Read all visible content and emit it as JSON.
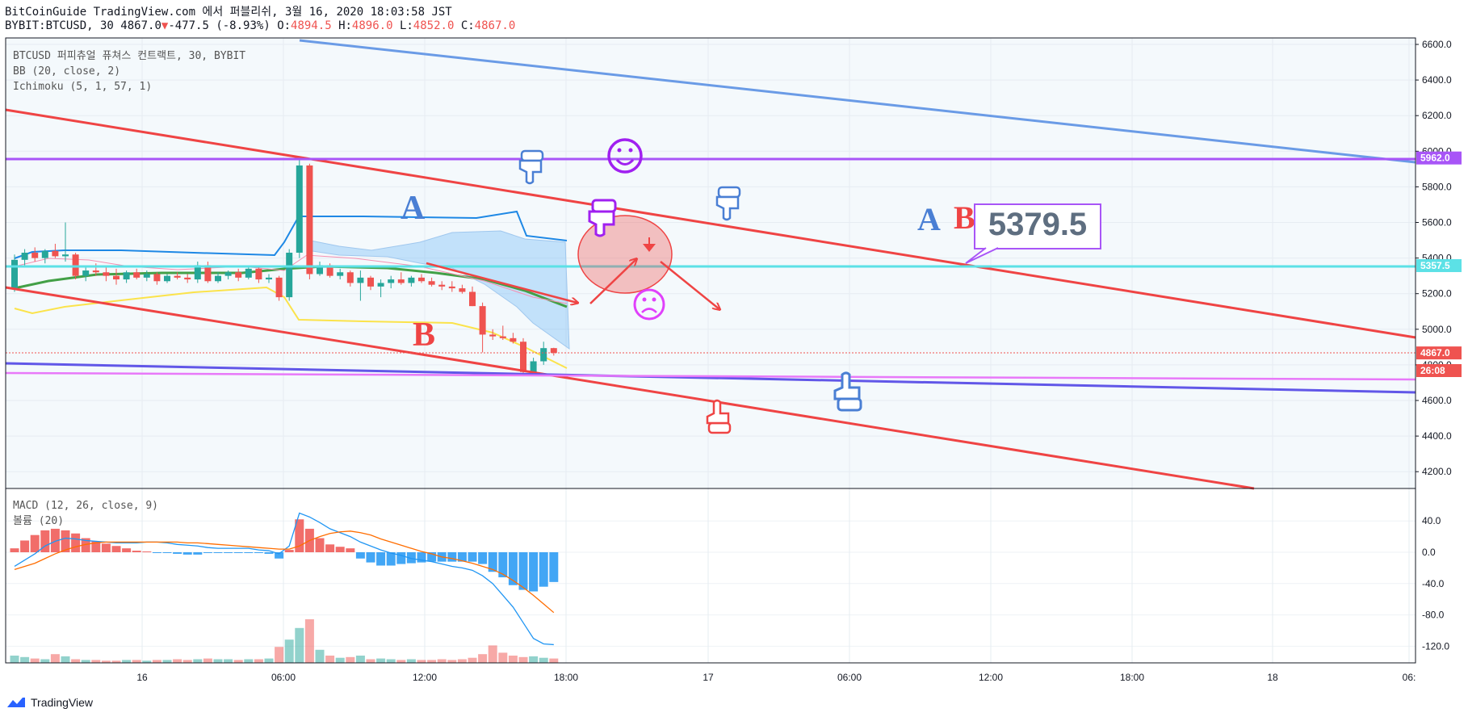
{
  "header": {
    "line1": "BitCoinGuide TradingView.com 에서 퍼블리쉬, 3월 16, 2020 18:03:58 JST",
    "symbol": "BYBIT:BTCUSD, 30",
    "last": "4867.0",
    "change": "-477.5 (-8.93%)",
    "o_label": "O:",
    "o_val": "4894.5",
    "h_label": "H:",
    "h_val": "4896.0",
    "l_label": "L:",
    "l_val": "4852.0",
    "c_label": "C:",
    "c_val": "4867.0"
  },
  "legend": {
    "main": "BTCUSD 퍼피츄얼 퓨쳐스 컨트랙트, 30, BYBIT",
    "bb": "BB (20, close, 2)",
    "ichimoku": "Ichimoku (5, 1, 57, 1)",
    "macd": "MACD (12, 26, close, 9)",
    "volume": "볼륨 (20)"
  },
  "footer": {
    "brand": "TradingView"
  },
  "colors": {
    "up": "#26a69a",
    "down": "#ef5350",
    "channel": "#ef4444",
    "blue_line": "#6a9be6",
    "purple_line": "#a855f7",
    "cyan_line": "#5ce1e6",
    "macd": "#2196f3",
    "signal": "#ff6d00"
  },
  "chart_data": [
    {
      "type": "candlestick",
      "title": "BTCUSD 퍼피츄얼 퓨쳐스 컨트랙트, 30, BYBIT",
      "ylim": [
        4100,
        6650
      ],
      "y_ticks": [
        "6600.0",
        "6400.0",
        "6200.0",
        "6000.0",
        "5800.0",
        "5600.0",
        "5400.0",
        "5200.0",
        "5000.0",
        "4800.0",
        "4600.0",
        "4400.0",
        "4200.0"
      ],
      "x_ticks": [
        "16",
        "06:00",
        "12:00",
        "18:00",
        "17",
        "06:00",
        "12:00",
        "18:00",
        "18",
        "06:"
      ],
      "price_labels": [
        {
          "text": "5962.0",
          "value": 5962,
          "color": "#a855f7"
        },
        {
          "text": "5357.5",
          "value": 5357.5,
          "color": "#5ce1e6"
        },
        {
          "text": "4867.0",
          "value": 4867,
          "color": "#ef5350"
        },
        {
          "text": "26:08",
          "value": 4770,
          "color": "#ef5350"
        }
      ],
      "ohlc": [
        [
          5230,
          5420,
          5210,
          5390
        ],
        [
          5390,
          5450,
          5350,
          5430
        ],
        [
          5430,
          5460,
          5380,
          5400
        ],
        [
          5400,
          5450,
          5370,
          5440
        ],
        [
          5440,
          5480,
          5400,
          5410
        ],
        [
          5410,
          5600,
          5380,
          5420
        ],
        [
          5420,
          5430,
          5280,
          5300
        ],
        [
          5300,
          5350,
          5270,
          5330
        ],
        [
          5330,
          5370,
          5300,
          5320
        ],
        [
          5320,
          5350,
          5270,
          5300
        ],
        [
          5300,
          5340,
          5250,
          5280
        ],
        [
          5280,
          5330,
          5260,
          5320
        ],
        [
          5320,
          5340,
          5280,
          5290
        ],
        [
          5290,
          5330,
          5270,
          5310
        ],
        [
          5310,
          5320,
          5250,
          5270
        ],
        [
          5270,
          5310,
          5260,
          5300
        ],
        [
          5300,
          5320,
          5280,
          5290
        ],
        [
          5290,
          5310,
          5260,
          5280
        ],
        [
          5280,
          5380,
          5260,
          5360
        ],
        [
          5360,
          5380,
          5260,
          5270
        ],
        [
          5270,
          5320,
          5260,
          5300
        ],
        [
          5300,
          5330,
          5280,
          5320
        ],
        [
          5320,
          5340,
          5270,
          5290
        ],
        [
          5290,
          5350,
          5280,
          5340
        ],
        [
          5340,
          5350,
          5260,
          5280
        ],
        [
          5280,
          5310,
          5260,
          5290
        ],
        [
          5290,
          5300,
          5160,
          5180
        ],
        [
          5180,
          5450,
          5160,
          5430
        ],
        [
          5430,
          5950,
          5400,
          5920
        ],
        [
          5920,
          5930,
          5280,
          5310
        ],
        [
          5310,
          5380,
          5300,
          5360
        ],
        [
          5360,
          5370,
          5290,
          5300
        ],
        [
          5300,
          5340,
          5280,
          5320
        ],
        [
          5320,
          5330,
          5240,
          5260
        ],
        [
          5260,
          5330,
          5160,
          5290
        ],
        [
          5290,
          5300,
          5220,
          5240
        ],
        [
          5240,
          5280,
          5180,
          5260
        ],
        [
          5260,
          5300,
          5230,
          5280
        ],
        [
          5280,
          5320,
          5250,
          5260
        ],
        [
          5260,
          5300,
          5240,
          5290
        ],
        [
          5290,
          5310,
          5260,
          5270
        ],
        [
          5270,
          5290,
          5240,
          5250
        ],
        [
          5250,
          5270,
          5220,
          5240
        ],
        [
          5240,
          5270,
          5210,
          5230
        ],
        [
          5230,
          5250,
          5200,
          5210
        ],
        [
          5210,
          5240,
          5130,
          5130
        ],
        [
          5130,
          5150,
          4870,
          4970
        ],
        [
          4970,
          5000,
          4940,
          4960
        ],
        [
          4960,
          5020,
          4940,
          4950
        ],
        [
          4950,
          4980,
          4920,
          4930
        ],
        [
          4930,
          4950,
          4740,
          4760
        ],
        [
          4760,
          4840,
          4740,
          4820
        ],
        [
          4820,
          4930,
          4800,
          4894
        ],
        [
          4894,
          4896,
          4852,
          4867
        ]
      ]
    },
    {
      "type": "bar",
      "title": "MACD (12, 26, close, 9)",
      "ylim": [
        -140,
        60
      ],
      "y_ticks": [
        "40.0",
        "0.0",
        "-40.0",
        "-80.0",
        "-120.0"
      ],
      "series": [
        {
          "name": "MACD",
          "values": [
            -18,
            -10,
            -2,
            8,
            14,
            18,
            17,
            15,
            14,
            13,
            12,
            12,
            12,
            13,
            13,
            12,
            10,
            9,
            8,
            6,
            5,
            5,
            5,
            5,
            3,
            2,
            -2,
            8,
            50,
            45,
            38,
            30,
            25,
            20,
            13,
            8,
            3,
            -1,
            -4,
            -8,
            -10,
            -12,
            -15,
            -18,
            -20,
            -23,
            -30,
            -40,
            -55,
            -70,
            -90,
            -110,
            -117,
            -118
          ]
        },
        {
          "name": "Signal",
          "values": [
            -22,
            -18,
            -14,
            -8,
            -2,
            3,
            7,
            10,
            12,
            13,
            13,
            13,
            13,
            13,
            13,
            13,
            13,
            12,
            12,
            11,
            10,
            9,
            8,
            7,
            6,
            5,
            4,
            4,
            8,
            15,
            20,
            24,
            26,
            27,
            25,
            22,
            17,
            13,
            9,
            5,
            1,
            -2,
            -6,
            -8,
            -11,
            -14,
            -18,
            -22,
            -28,
            -36,
            -45,
            -55,
            -66,
            -77
          ]
        },
        {
          "name": "Histogram",
          "values": [
            5,
            15,
            22,
            28,
            30,
            28,
            24,
            18,
            14,
            11,
            8,
            5,
            2,
            1,
            -1,
            -1,
            -2,
            -3,
            -3,
            -1,
            -1,
            -1,
            -1,
            -1,
            -1,
            -2,
            -8,
            3,
            42,
            30,
            18,
            10,
            7,
            5,
            -8,
            -13,
            -17,
            -17,
            -15,
            -14,
            -13,
            -12,
            -12,
            -12,
            -12,
            -12,
            -15,
            -25,
            -32,
            -42,
            -48,
            -50,
            -44,
            -38
          ]
        }
      ]
    },
    {
      "type": "bar",
      "title": "볼륨 (20)",
      "values": [
        10,
        8,
        6,
        5,
        12,
        9,
        5,
        4,
        4,
        3,
        3,
        4,
        4,
        3,
        4,
        4,
        5,
        4,
        5,
        6,
        5,
        5,
        4,
        5,
        5,
        6,
        22,
        32,
        48,
        60,
        18,
        10,
        7,
        8,
        10,
        5,
        6,
        5,
        4,
        5,
        4,
        4,
        5,
        4,
        5,
        7,
        12,
        24,
        14,
        10,
        8,
        9,
        7,
        6
      ]
    }
  ]
}
